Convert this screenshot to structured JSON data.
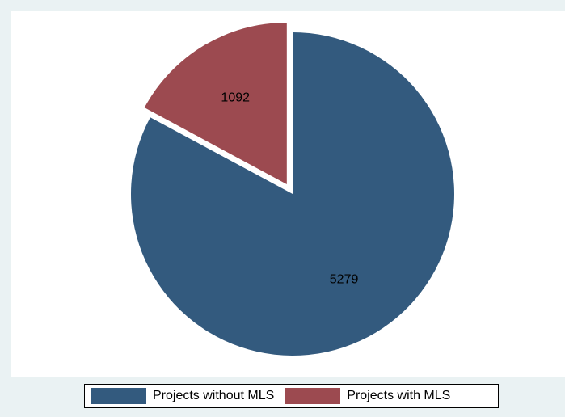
{
  "chart_data": {
    "type": "pie",
    "title": "",
    "categories": [
      "Projects without MLS",
      "Projects with MLS"
    ],
    "values": [
      5279,
      1092
    ],
    "colors": [
      "#335a7e",
      "#9c4a50"
    ],
    "exploded": [
      false,
      true
    ],
    "start_angle_deg": 0,
    "direction": "clockwise",
    "legend_position": "bottom",
    "data_labels": [
      "5279",
      "1092"
    ]
  }
}
